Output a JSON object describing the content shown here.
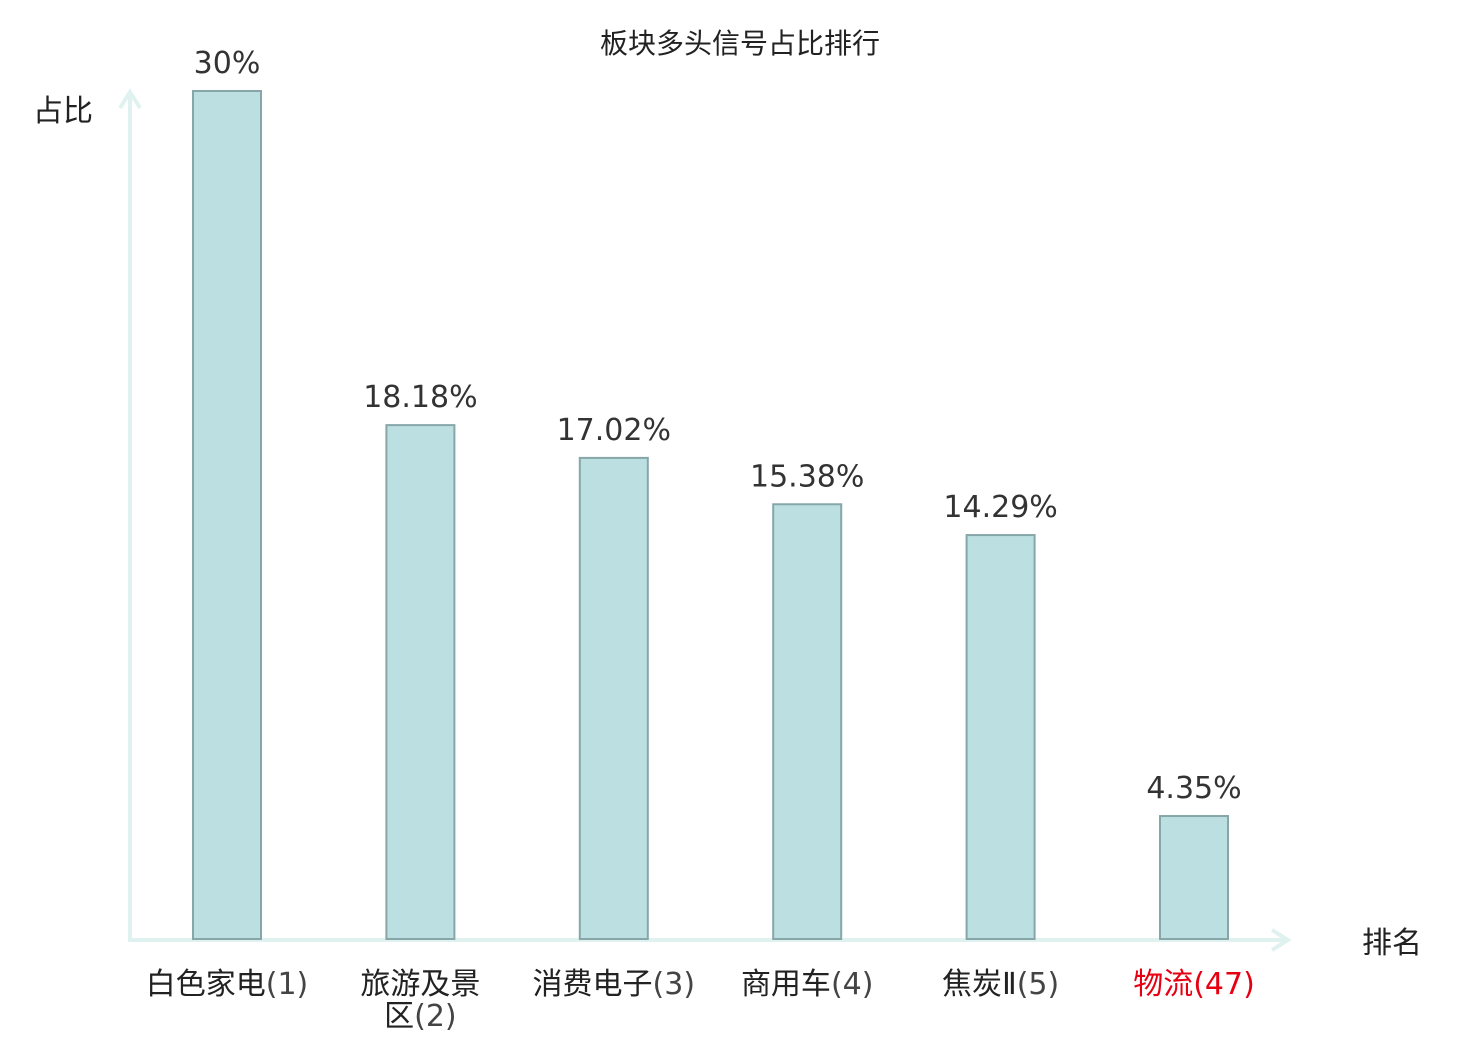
{
  "chart_data": {
    "type": "bar",
    "title": "板块多头信号占比排行",
    "xlabel": "排名",
    "ylabel": "占比",
    "categories": [
      [
        "白色家电",
        "(1)"
      ],
      [
        "旅游及景",
        "区(2)"
      ],
      [
        "消费电子",
        "(3)"
      ],
      [
        "商用车",
        "(4)"
      ],
      [
        "焦炭Ⅱ",
        "(5)"
      ],
      [
        "物流",
        "(47)"
      ]
    ],
    "values": [
      30,
      18.18,
      17.02,
      15.38,
      14.29,
      4.35
    ],
    "value_labels": [
      "30%",
      "18.18%",
      "17.02%",
      "15.38%",
      "14.29%",
      "4.35%"
    ],
    "highlight_index": 5,
    "ylim": [
      0,
      30
    ],
    "grid": false,
    "colors": {
      "bar_fill": "#bce0e2",
      "bar_stroke": "#86a6a8",
      "axis": "#e0f2ef",
      "text": "#333333",
      "highlight": "#e60012"
    }
  }
}
